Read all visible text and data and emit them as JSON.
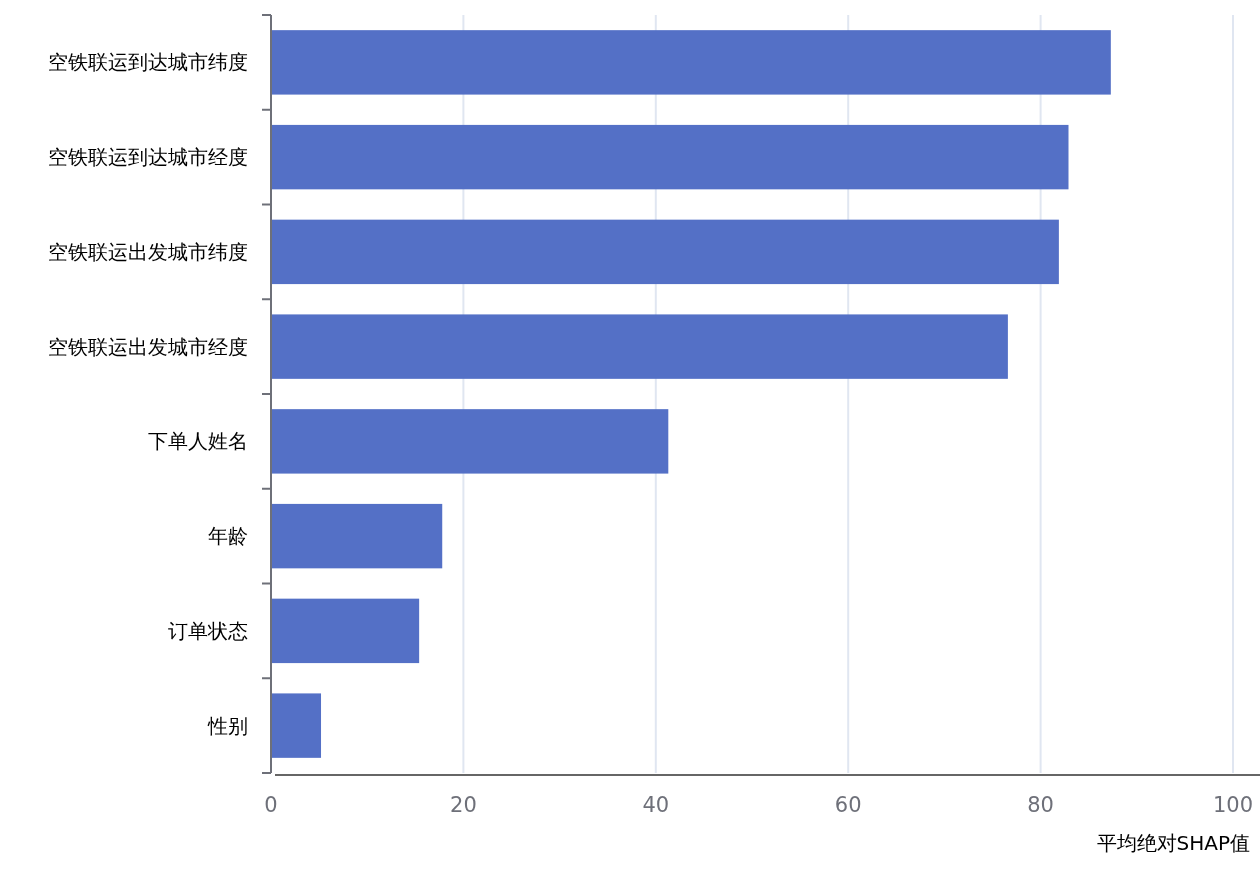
{
  "chart_data": {
    "type": "bar",
    "orientation": "horizontal",
    "categories": [
      "空铁联运到达城市纬度",
      "空铁联运到达城市经度",
      "空铁联运出发城市纬度",
      "空铁联运出发城市经度",
      "下单人姓名",
      "年龄",
      "订单状态",
      "性别"
    ],
    "values": [
      87.3,
      82.9,
      81.9,
      76.6,
      41.3,
      17.8,
      15.4,
      5.2
    ],
    "color": "#5470c6",
    "xlabel": "平均绝对SHAP值",
    "xlim": [
      0,
      100
    ],
    "xticks": [
      0,
      20,
      40,
      60,
      80,
      100
    ],
    "grid": "x"
  }
}
